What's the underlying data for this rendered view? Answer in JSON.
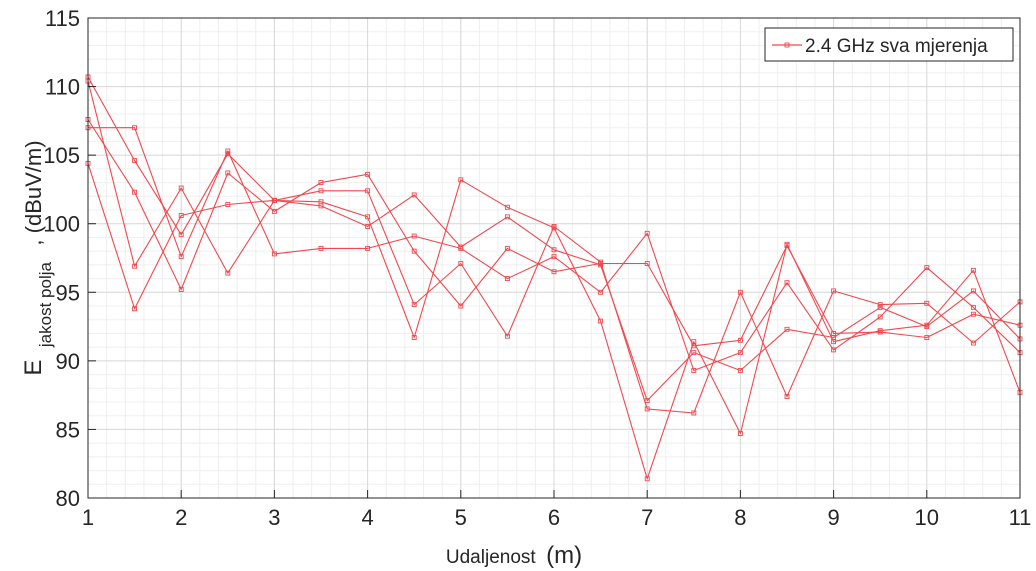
{
  "chart_data": {
    "type": "line",
    "title": "",
    "xlabel": {
      "main": "Udaljenost",
      "unit": "(m)"
    },
    "ylabel": {
      "symbol": "E",
      "subscript": "jakost polja",
      "unit": ", (dBuV/m)"
    },
    "xlim": [
      1,
      11
    ],
    "ylim": [
      80,
      115
    ],
    "xticks": [
      1,
      2,
      3,
      4,
      5,
      6,
      7,
      8,
      9,
      10,
      11
    ],
    "yticks": [
      80,
      85,
      90,
      95,
      100,
      105,
      110,
      115
    ],
    "grid": true,
    "minor_grid": true,
    "legend": {
      "position": "top-right",
      "entries": [
        "2.4 GHz sva mjerenja"
      ]
    },
    "color": "#f0484e",
    "marker": "square",
    "x": [
      1,
      1.5,
      2,
      2.5,
      3,
      3.5,
      4,
      4.5,
      5,
      5.5,
      6,
      6.5,
      7,
      7.5,
      8,
      8.5,
      9,
      9.5,
      10,
      10.5,
      11
    ],
    "series": [
      {
        "values": [
          110.7,
          104.6,
          99.2,
          105.1,
          101.7,
          101.6,
          100.5,
          91.7,
          103.2,
          101.2,
          99.7,
          92.9,
          81.4,
          91.4,
          84.7,
          98.5,
          91.4,
          92.2,
          92.6,
          96.6,
          87.7
        ]
      },
      {
        "values": [
          110.4,
          96.9,
          102.6,
          96.4,
          101.7,
          102.4,
          102.4,
          94.1,
          97.1,
          91.8,
          99.8,
          97.2,
          86.5,
          86.2,
          95.0,
          87.4,
          95.1,
          94.1,
          94.2,
          91.3,
          94.3
        ]
      },
      {
        "values": [
          107.6,
          102.3,
          95.2,
          103.7,
          100.9,
          103.0,
          103.6,
          98.0,
          94.0,
          98.2,
          96.5,
          97.1,
          97.1,
          91.1,
          91.5,
          98.4,
          92.0,
          92.1,
          91.7,
          93.4,
          92.6
        ]
      },
      {
        "values": [
          107.0,
          107.0,
          97.6,
          105.3,
          97.8,
          98.2,
          98.2,
          99.1,
          98.2,
          96.0,
          97.6,
          95.0,
          99.3,
          89.3,
          90.6,
          95.7,
          90.8,
          93.2,
          96.8,
          93.9,
          90.6
        ]
      },
      {
        "values": [
          104.4,
          93.8,
          100.6,
          101.4,
          101.7,
          101.3,
          99.8,
          102.1,
          98.3,
          100.5,
          98.1,
          97.0,
          87.1,
          90.6,
          89.3,
          92.3,
          91.7,
          93.9,
          92.5,
          95.1,
          91.6
        ]
      }
    ]
  }
}
